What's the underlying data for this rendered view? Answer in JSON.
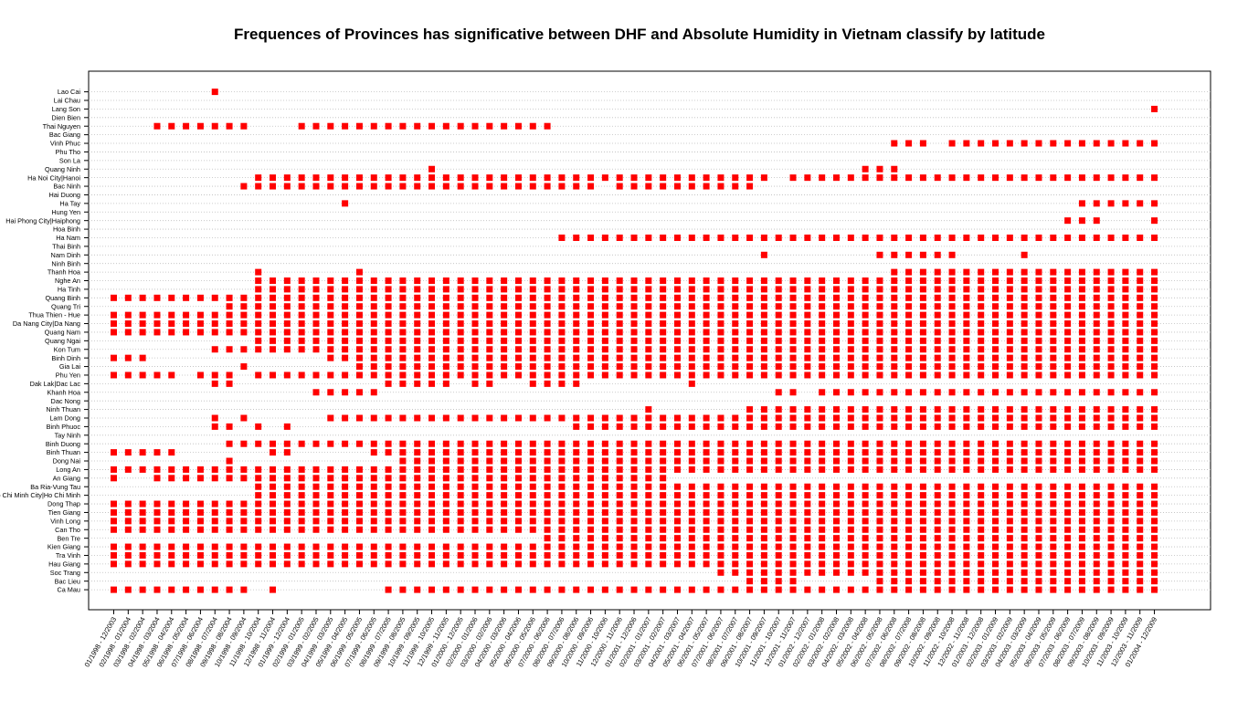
{
  "chart_data": {
    "type": "scatter",
    "title": "Frequences of Provinces has significative between DHF and Absolute Humidity in Vietnam classify by latitude",
    "xlabel": "",
    "ylabel": "",
    "grid": "horizontal dotted",
    "marker_color": "#ff0000",
    "categories": [
      "01/1998 - 12/2003",
      "02/1998 - 01/2004",
      "03/1998 - 02/2004",
      "04/1998 - 03/2004",
      "05/1998 - 04/2004",
      "06/1998 - 05/2004",
      "07/1998 - 06/2004",
      "08/1998 - 07/2004",
      "09/1998 - 08/2004",
      "10/1998 - 09/2004",
      "11/1998 - 10/2004",
      "12/1998 - 11/2004",
      "01/1999 - 12/2004",
      "02/1999 - 01/2005",
      "03/1999 - 02/2005",
      "04/1999 - 03/2005",
      "05/1999 - 04/2005",
      "06/1999 - 05/2005",
      "07/1999 - 06/2005",
      "08/1999 - 07/2005",
      "09/1999 - 08/2005",
      "10/1999 - 09/2005",
      "11/1999 - 10/2005",
      "12/1999 - 11/2005",
      "01/2000 - 12/2005",
      "02/2000 - 01/2006",
      "03/2000 - 02/2006",
      "04/2000 - 03/2006",
      "05/2000 - 04/2006",
      "06/2000 - 05/2006",
      "07/2000 - 06/2006",
      "08/2000 - 07/2006",
      "09/2000 - 08/2006",
      "10/2000 - 09/2006",
      "11/2000 - 10/2006",
      "12/2000 - 11/2006",
      "01/2001 - 12/2006",
      "02/2001 - 01/2007",
      "03/2001 - 02/2007",
      "04/2001 - 03/2007",
      "05/2001 - 04/2007",
      "06/2001 - 05/2007",
      "07/2001 - 06/2007",
      "08/2001 - 07/2007",
      "09/2001 - 08/2007",
      "10/2001 - 09/2007",
      "11/2001 - 10/2007",
      "12/2001 - 11/2007",
      "01/2002 - 12/2007",
      "02/2002 - 01/2008",
      "03/2002 - 02/2008",
      "04/2002 - 03/2008",
      "05/2002 - 04/2008",
      "06/2002 - 05/2008",
      "07/2002 - 06/2008",
      "08/2002 - 07/2008",
      "09/2002 - 08/2008",
      "10/2002 - 09/2008",
      "11/2002 - 10/2008",
      "12/2002 - 11/2008",
      "01/2003 - 12/2008",
      "02/2003 - 01/2009",
      "03/2003 - 02/2009",
      "04/2003 - 03/2009",
      "05/2003 - 04/2009",
      "06/2003 - 05/2009",
      "07/2003 - 06/2009",
      "08/2003 - 07/2009",
      "09/2003 - 08/2009",
      "10/2003 - 09/2009",
      "11/2003 - 10/2009",
      "12/2003 - 11/2009",
      "01/2004 - 12/2009"
    ],
    "x_tick_labels_shown": [
      "01/1998 - 12/2003",
      "02/1998 - 01/2004",
      "03/1998 - 02/2004",
      "04/1998 - 03/2004",
      "05/1998 - 04/2004",
      "06/1998 - 05/2004",
      "07/1998 - 06/2004",
      "08/1998 - 07/2004",
      "09/1998 - 08/2004",
      "10/1998 - 09/2004",
      "11/1998 - 10/2004",
      "12/1998 - 11/2004",
      "01/1999 - 12/2004",
      "02/1999 - 01/2005",
      "03/1999 - 02/2005",
      "04/1999 - 03/2005",
      "05/1999 - 04/2005",
      "06/1999 - 05/2005",
      "07/1999 - 06/2005",
      "08/1999 - 07/2005",
      "09/1999 - 08/2005",
      "10/1999 - 09/2005",
      "11/1999 - 10/2005",
      "12/1999 - 11/2005",
      "01/2000 - 12/2005",
      "02/2000 - 01/2006",
      "03/2000 - 02/2006",
      "04/2000 - 03/2006",
      "05/2000 - 04/2006",
      "06/2000 - 05/2006",
      "07/2000 - 06/2006",
      "08/2000 - 07/2006",
      "09/2000 - 08/2006",
      "10/2000 - 09/2006",
      "11/2000 - 10/2006",
      "12/2000 - 11/2006",
      "01/2001 - 12/2006",
      "02/2001 - 01/2007",
      "03/2001 - 02/2007",
      "04/2001 - 03/2007",
      "05/2001 - 04/2007",
      "06/2001 - 05/2007",
      "07/2001 - 06/2007",
      "08/2001 - 07/2007",
      "09/2001 - 08/2007",
      "10/2001 - 09/2007",
      "11/2001 - 10/2007",
      "12/2001 - 11/2007",
      "01/2002 - 12/2007",
      "02/2002 - 01/2008",
      "03/2002 - 02/2008",
      "04/2002 - 03/2008",
      "05/2002 - 04/2008",
      "06/2002 - 05/2008",
      "07/2002 - 06/2008",
      "08/2002 - 07/2008",
      "09/2002 - 08/2008",
      "10/2002 - 09/2008",
      "11/2002 - 10/2008",
      "12/2002 - 11/2008",
      "01/2003 - 12/2008",
      "02/2003 - 01/2009",
      "03/2003 - 02/2009",
      "04/2003 - 03/2009",
      "05/2003 - 04/2009",
      "06/2003 - 05/2009",
      "07/2003 - 06/2009",
      "08/2003 - 07/2009",
      "09/2003 - 08/2009",
      "10/2003 - 09/2009",
      "11/2003 - 10/2009",
      "12/2003 - 11/2009",
      "01/2004 - 12/2009"
    ],
    "provinces": [
      "Lao Cai",
      "Lai Chau",
      "Lang Son",
      "Dien Bien",
      "Thai Nguyen",
      "Bac Giang",
      "Vinh Phuc",
      "Phu Tho",
      "Son La",
      "Quang Ninh",
      "Ha Noi City|Hanoi",
      "Bac Ninh",
      "Hai Duong",
      "Ha Tay",
      "Hung Yen",
      "Hai Phong City|Haiphong",
      "Hoa Binh",
      "Ha Nam",
      "Thai Binh",
      "Nam Dinh",
      "Ninh Binh",
      "Thanh Hoa",
      "Nghe An",
      "Ha Tinh",
      "Quang Binh",
      "Quang Tri",
      "Thua Thien - Hue",
      "Da Nang City|Da Nang",
      "Quang Nam",
      "Quang Ngai",
      "Kon Tum",
      "Binh Dinh",
      "Gia Lai",
      "Phu Yen",
      "Dak Lak|Dac Lac",
      "Khanh Hoa",
      "Dac Nong",
      "Ninh Thuan",
      "Lam Dong",
      "Binh Phuoc",
      "Tay Ninh",
      "Binh Duong",
      "Binh Thuan",
      "Dong Nai",
      "Long An",
      "An Giang",
      "Ba Ria-Vung Tau",
      "Ho Chi Minh City|Ho Chi Minh",
      "Dong Thap",
      "Tien Giang",
      "Vinh Long",
      "Can Tho",
      "Ben Tre",
      "Kien Giang",
      "Tra Vinh",
      "Hau Giang",
      "Soc Trang",
      "Bac Lieu",
      "Ca Mau"
    ],
    "significant": {
      "Lao Cai": "7",
      "Lang Son": "72",
      "Thai Nguyen": "3-9,13-30",
      "Vinh Phuc": "54-56,58-72",
      "Quang Ninh": "22,52-54",
      "Ha Noi City|Hanoi": "10-45,47-72",
      "Bac Ninh": "9-33,35-44",
      "Ha Tay": "16,67,68-72",
      "Hai Phong City|Haiphong": "66-68,72",
      "Ha Nam": "31-72",
      "Nam Dinh": "45,53-58,63",
      "Thanh Hoa": "10,17,54-72",
      "Nghe An": "10-72",
      "Ha Tinh": "10-72",
      "Quang Binh": "0-72",
      "Quang Tri": "8-72",
      "Thua Thien - Hue": "0-72",
      "Da Nang City|Da Nang": "0-72",
      "Quang Nam": "0-72",
      "Quang Ngai": "10-72",
      "Kon Tum": "7-72",
      "Binh Dinh": "0-2,15-72",
      "Gia Lai": "9,17-72",
      "Phu Yen": "0-4,6-8,10-72",
      "Dak Lak|Dac Lac": "7,8,19-23,25,26,29-32,40",
      "Khanh Hoa": "14-18,46,47,49-72",
      "Ninh Thuan": "37,44-72",
      "Lam Dong": "7,9,15-72",
      "Binh Phuoc": "7,8,10,12,32-72",
      "Binh Duong": "8-72",
      "Binh Thuan": "0-4,11,12,18-72",
      "Dong Nai": "8,20-72",
      "Long An": "0-72",
      "An Giang": "0,3-38",
      "Ba Ria-Vung Tau": "10-72",
      "Ho Chi Minh City|Ho Chi Minh": "10-72",
      "Dong Thap": "0-72",
      "Tien Giang": "0-72",
      "Vinh Long": "0-72",
      "Can Tho": "0-72",
      "Ben Tre": "30-72",
      "Kien Giang": "0-72",
      "Tra Vinh": "0-72",
      "Hau Giang": "0-72",
      "Soc Trang": "42-72",
      "Bac Lieu": "44-47,53-72",
      "Ca Mau": "0-9,11,19-72"
    }
  }
}
